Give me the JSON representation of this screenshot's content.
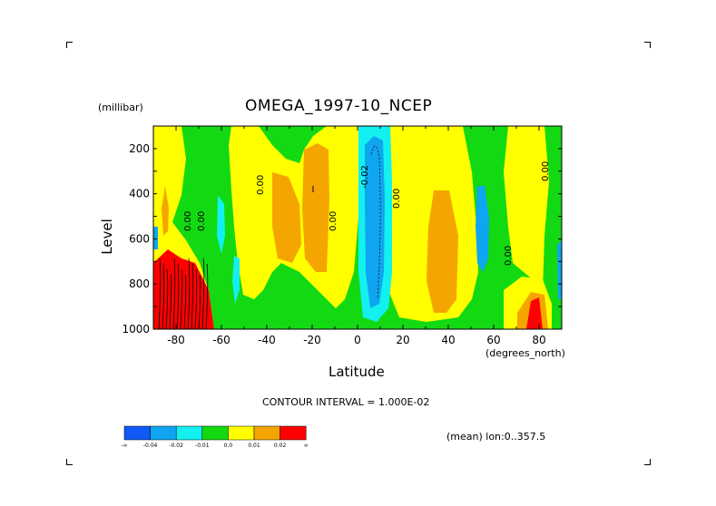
{
  "chart_data": {
    "type": "heatmap",
    "title": "OMEGA_1997-10_NCEP",
    "xlabel": "Latitude",
    "xunit": "(degrees_north)",
    "ylabel": "Level",
    "yunit": "(millibar)",
    "xlim": [
      -90,
      90
    ],
    "ylim": [
      1000,
      100
    ],
    "x_ticks": [
      "-80",
      "-60",
      "-40",
      "-20",
      "0",
      "20",
      "40",
      "60",
      "80"
    ],
    "y_ticks": [
      "200",
      "400",
      "600",
      "800",
      "1000"
    ],
    "contour_interval_text": "CONTOUR INTERVAL = 1.000E-02",
    "mean_text": "(mean) lon:0..357.5",
    "contour_labels": [
      "0.00",
      "0.00",
      "0.00",
      "-0.02",
      "0.00",
      "0.00",
      "0.00",
      "0.00"
    ],
    "colorbar": {
      "colors": [
        "#0f5af5",
        "#0fa5f0",
        "#13f0f0",
        "#13d913",
        "#ffff00",
        "#f5a500",
        "#ff0000"
      ],
      "ticks": [
        "-∞",
        "-0.04",
        "-0.02",
        "-0.01",
        "0.0",
        "0.01",
        "0.02",
        "∞"
      ]
    },
    "regions": [
      {
        "value_class": "green",
        "desc": "background near-zero"
      },
      {
        "value_class": "red",
        "x": [
          -90,
          -63
        ],
        "p": [
          1000,
          680
        ]
      },
      {
        "value_class": "blue",
        "x": [
          0,
          15
        ],
        "p": [
          850,
          150
        ]
      },
      {
        "value_class": "red",
        "x": [
          75,
          85
        ],
        "p": [
          1000,
          880
        ]
      }
    ]
  }
}
